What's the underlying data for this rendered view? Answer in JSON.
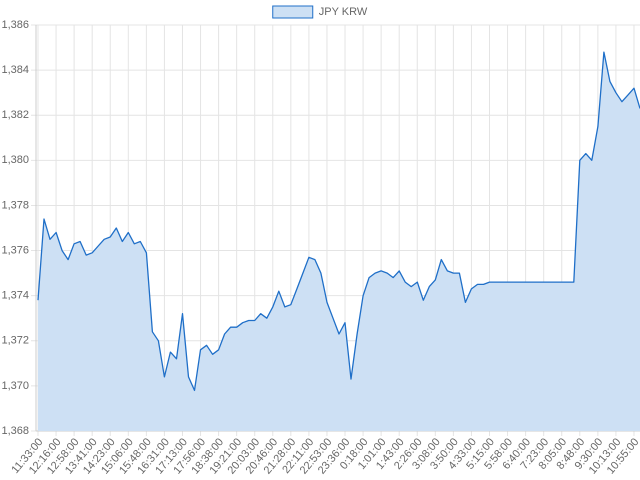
{
  "chart_data": {
    "type": "line",
    "categories": [
      "11:33:00",
      null,
      null,
      "12:16:00",
      null,
      null,
      "12:58:00",
      null,
      null,
      "13:41:00",
      null,
      null,
      "14:23:00",
      null,
      null,
      "15:06:00",
      null,
      null,
      "15:48:00",
      null,
      null,
      "16:31:00",
      null,
      null,
      "17:13:00",
      null,
      null,
      "17:56:00",
      null,
      null,
      "18:38:00",
      null,
      null,
      "19:21:00",
      null,
      null,
      "20:03:00",
      null,
      null,
      "20:46:00",
      null,
      null,
      "21:28:00",
      null,
      null,
      "22:11:00",
      null,
      null,
      "22:53:00",
      null,
      null,
      "23:36:00",
      null,
      null,
      "0:18:00",
      null,
      null,
      "1:01:00",
      null,
      null,
      "1:43:00",
      null,
      null,
      "2:26:00",
      null,
      null,
      "3:08:00",
      null,
      null,
      "3:50:00",
      null,
      null,
      "4:33:00",
      null,
      null,
      "5:15:00",
      null,
      null,
      "5:58:00",
      null,
      null,
      "6:40:00",
      null,
      null,
      "7:23:00",
      null,
      null,
      "8:05:00",
      null,
      null,
      "8:48:00",
      null,
      null,
      "9:30:00",
      null,
      null,
      "10:13:00",
      null,
      null,
      "10:55:00",
      null
    ],
    "series": [
      {
        "name": "JPY KRW",
        "color": "#1f6fc8",
        "fill": "#cde0f4",
        "values": [
          1373.8,
          1377.4,
          1376.5,
          1376.8,
          1376.0,
          1375.6,
          1376.3,
          1376.4,
          1375.8,
          1375.9,
          1376.2,
          1376.5,
          1376.6,
          1377.0,
          1376.4,
          1376.8,
          1376.3,
          1376.4,
          1375.9,
          1372.4,
          1372.0,
          1370.4,
          1371.5,
          1371.2,
          1373.2,
          1370.4,
          1369.8,
          1371.6,
          1371.8,
          1371.4,
          1371.6,
          1372.3,
          1372.6,
          1372.6,
          1372.8,
          1372.9,
          1372.9,
          1373.2,
          1373.0,
          1373.5,
          1374.2,
          1373.5,
          1373.6,
          1374.3,
          1375.0,
          1375.7,
          1375.6,
          1375.0,
          1373.7,
          1373.0,
          1372.3,
          1372.8,
          1370.3,
          1372.3,
          1374.0,
          1374.8,
          1375.0,
          1375.1,
          1375.0,
          1374.8,
          1375.1,
          1374.6,
          1374.4,
          1374.6,
          1373.8,
          1374.4,
          1374.7,
          1375.6,
          1375.1,
          1375.0,
          1375.0,
          1373.7,
          1374.3,
          1374.5,
          1374.5,
          1374.6,
          1374.6,
          1374.6,
          1374.6,
          1374.6,
          1374.6,
          1374.6,
          1374.6,
          1374.6,
          1374.6,
          1374.6,
          1374.6,
          1374.6,
          1374.6,
          1374.6,
          1380.0,
          1380.3,
          1380.0,
          1381.5,
          1384.8,
          1383.5,
          1383.0,
          1382.6,
          1382.9,
          1383.2,
          1382.3
        ]
      }
    ],
    "ylim": [
      1368,
      1386
    ],
    "yticks": [
      {
        "value": 1368,
        "label": "1,368"
      },
      {
        "value": 1370,
        "label": "1,370"
      },
      {
        "value": 1372,
        "label": "1,372"
      },
      {
        "value": 1374,
        "label": "1,374"
      },
      {
        "value": 1376,
        "label": "1,376"
      },
      {
        "value": 1378,
        "label": "1,378"
      },
      {
        "value": 1380,
        "label": "1,380"
      },
      {
        "value": 1382,
        "label": "1,382"
      },
      {
        "value": 1384,
        "label": "1,384"
      },
      {
        "value": 1386,
        "label": "1,386"
      }
    ],
    "grid": true,
    "legend": "top"
  }
}
